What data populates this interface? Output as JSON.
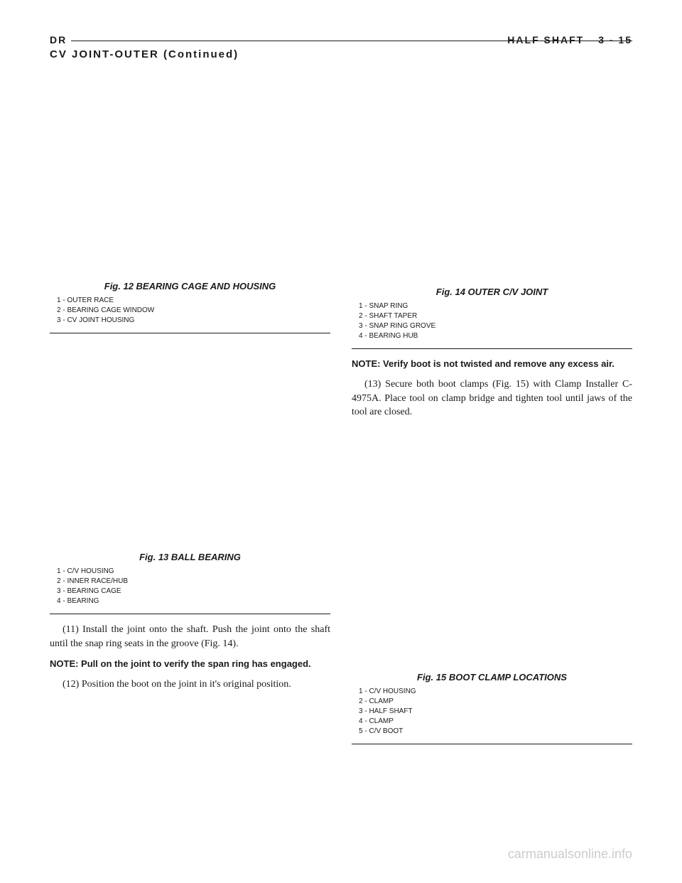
{
  "header": {
    "left": "DR",
    "section": "HALF SHAFT",
    "page": "3 - 15"
  },
  "section_title": "CV JOINT-OUTER (Continued)",
  "left_column": {
    "fig12": {
      "caption": "Fig. 12 BEARING CAGE AND HOUSING",
      "legend": [
        "1 - OUTER RACE",
        "2 - BEARING CAGE WINDOW",
        "3 - CV JOINT HOUSING"
      ]
    },
    "fig13": {
      "caption": "Fig. 13 BALL BEARING",
      "legend": [
        "1 - C/V HOUSING",
        "2 - INNER RACE/HUB",
        "3 - BEARING CAGE",
        "4 - BEARING"
      ]
    },
    "para11": "(11) Install the joint onto the shaft. Push the joint onto the shaft until the snap ring seats in the groove (Fig. 14).",
    "note1": "NOTE: Pull on the joint to verify the span ring has engaged.",
    "para12": "(12) Position the boot on the joint in it's original position."
  },
  "right_column": {
    "fig14": {
      "caption": "Fig. 14 OUTER C/V JOINT",
      "legend": [
        "1 - SNAP RING",
        "2 - SHAFT TAPER",
        "3 - SNAP RING GROVE",
        "4 - BEARING HUB"
      ]
    },
    "note2": "NOTE: Verify boot is not twisted and remove any excess air.",
    "para13": "(13) Secure both boot clamps (Fig. 15) with Clamp Installer C-4975A. Place tool on clamp bridge and tighten tool until jaws of the tool are closed.",
    "fig15": {
      "caption": "Fig. 15 BOOT CLAMP LOCATIONS",
      "legend": [
        "1 - C/V HOUSING",
        "2 - CLAMP",
        "3 - HALF SHAFT",
        "4 - CLAMP",
        "5 - C/V BOOT"
      ]
    }
  },
  "watermark": "carmanualsonline.info"
}
